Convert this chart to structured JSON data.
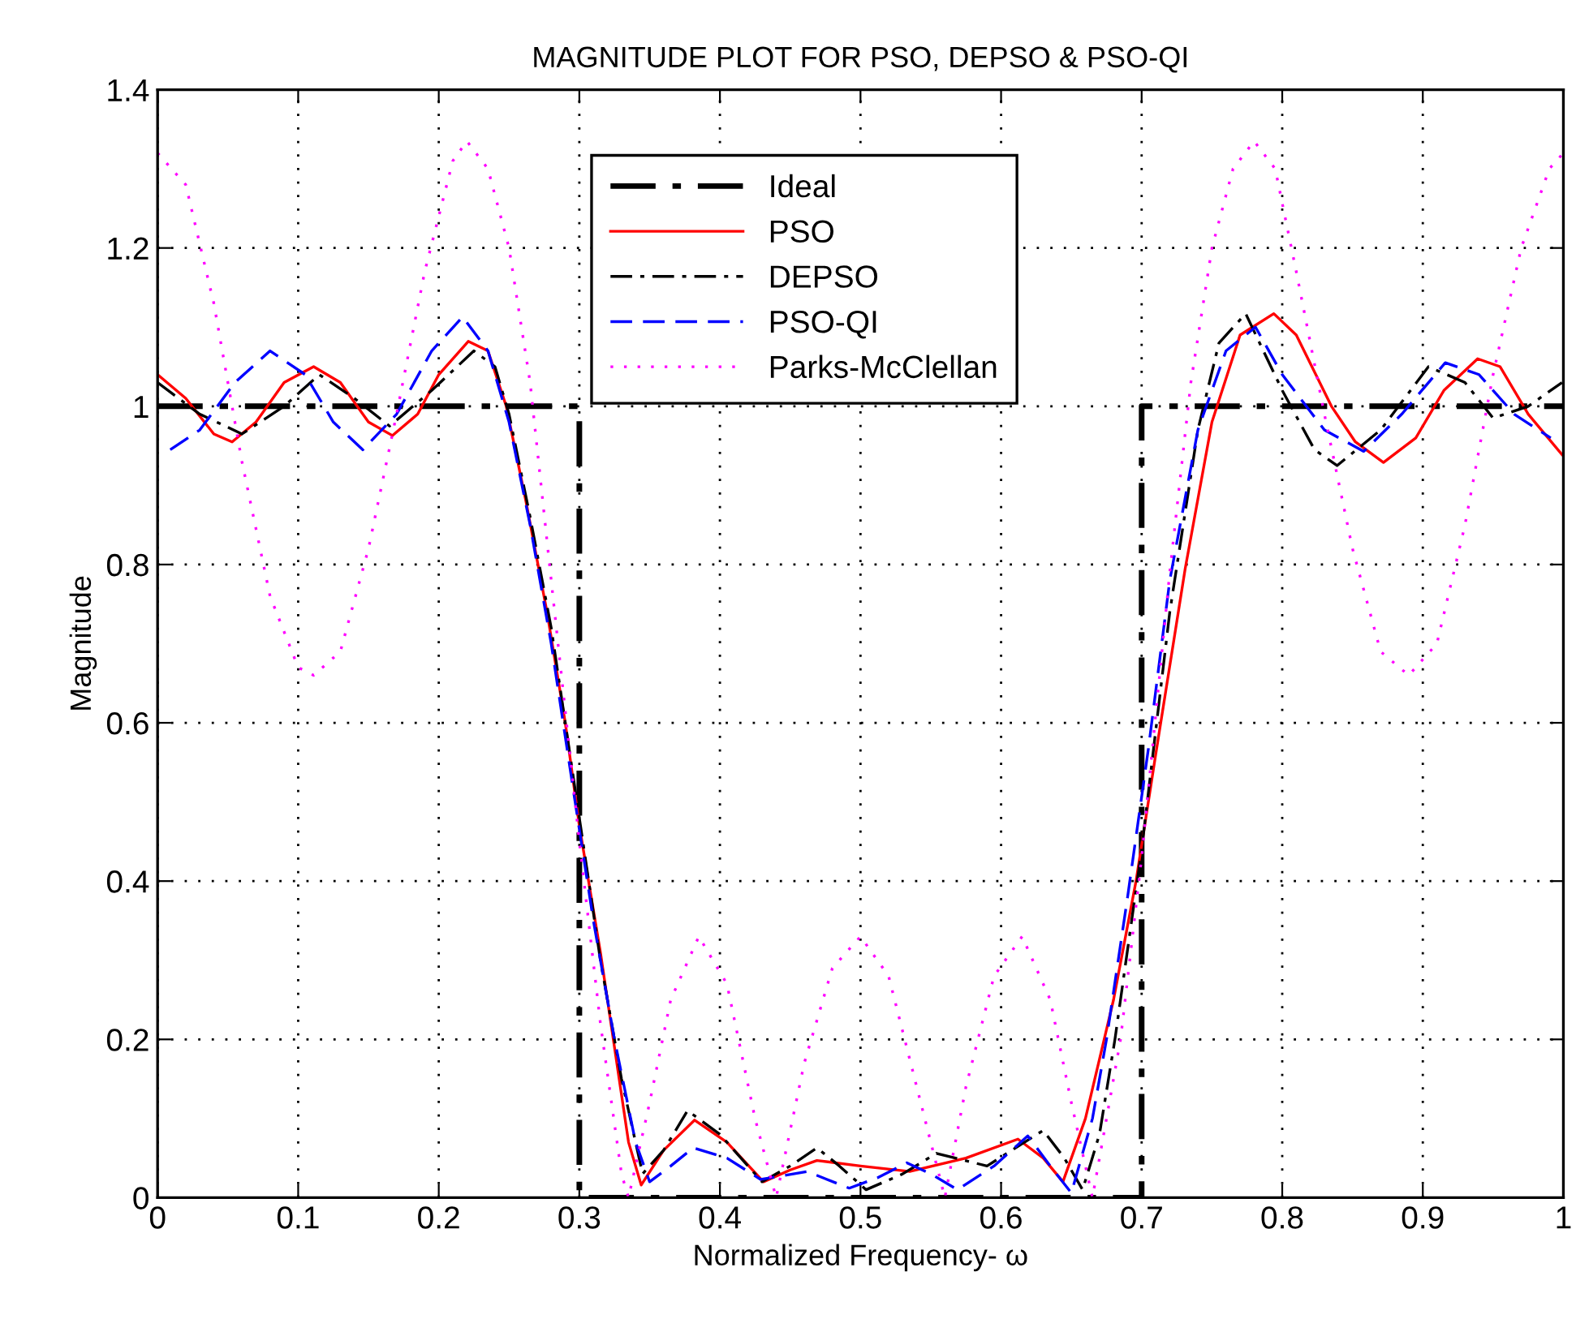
{
  "chart_data": {
    "type": "line",
    "title": "MAGNITUDE PLOT FOR PSO, DEPSO & PSO-QI",
    "xlabel": "Normalized Frequency- ω",
    "ylabel": "Magnitude",
    "xlim": [
      0,
      1
    ],
    "ylim": [
      0,
      1.4
    ],
    "xticks": [
      0,
      0.1,
      0.2,
      0.3,
      0.4,
      0.5,
      0.6,
      0.7,
      0.8,
      0.9,
      1
    ],
    "yticks": [
      0,
      0.2,
      0.4,
      0.6,
      0.8,
      1,
      1.2,
      1.4
    ],
    "grid": true,
    "legend": "top",
    "marker": "none",
    "series": [
      {
        "name": "Ideal",
        "color": "#000000",
        "line_style": "dashdot",
        "x": [
          0,
          0.3,
          0.3,
          0.7,
          0.7,
          1
        ],
        "values": [
          1,
          1,
          0,
          0,
          1,
          1
        ]
      },
      {
        "name": "PSO",
        "color": "#ff0000",
        "line_style": "solid",
        "x": [
          0,
          0.02,
          0.04,
          0.053,
          0.07,
          0.09,
          0.111,
          0.13,
          0.15,
          0.167,
          0.185,
          0.2,
          0.221,
          0.235,
          0.248,
          0.262,
          0.277,
          0.29,
          0.3,
          0.315,
          0.325,
          0.335,
          0.344,
          0.36,
          0.382,
          0.405,
          0.431,
          0.45,
          0.469,
          0.5,
          0.535,
          0.575,
          0.612,
          0.63,
          0.644,
          0.66,
          0.68,
          0.696,
          0.71,
          0.731,
          0.75,
          0.77,
          0.794,
          0.81,
          0.835,
          0.852,
          0.872,
          0.895,
          0.915,
          0.939,
          0.955,
          0.975,
          0.999
        ],
        "values": [
          1.04,
          1.01,
          0.965,
          0.955,
          0.98,
          1.03,
          1.05,
          1.03,
          0.98,
          0.963,
          0.99,
          1.04,
          1.082,
          1.07,
          1.0,
          0.88,
          0.74,
          0.6,
          0.47,
          0.31,
          0.19,
          0.07,
          0.016,
          0.06,
          0.098,
          0.07,
          0.02,
          0.035,
          0.047,
          0.04,
          0.033,
          0.05,
          0.074,
          0.05,
          0.02,
          0.1,
          0.25,
          0.4,
          0.56,
          0.795,
          0.98,
          1.09,
          1.117,
          1.09,
          1.0,
          0.955,
          0.929,
          0.96,
          1.02,
          1.06,
          1.05,
          0.99,
          0.939
        ]
      },
      {
        "name": "DEPSO",
        "color": "#000000",
        "line_style": "dashdot",
        "x": [
          0,
          0.03,
          0.06,
          0.09,
          0.115,
          0.14,
          0.165,
          0.195,
          0.225,
          0.24,
          0.25,
          0.265,
          0.28,
          0.29,
          0.3,
          0.315,
          0.33,
          0.345,
          0.36,
          0.377,
          0.4,
          0.43,
          0.45,
          0.469,
          0.485,
          0.504,
          0.53,
          0.554,
          0.59,
          0.63,
          0.645,
          0.658,
          0.67,
          0.681,
          0.7,
          0.72,
          0.74,
          0.755,
          0.774,
          0.8,
          0.823,
          0.839,
          0.87,
          0.904,
          0.93,
          0.95,
          0.975,
          0.999
        ],
        "values": [
          1.03,
          0.99,
          0.965,
          1.0,
          1.04,
          1.01,
          0.975,
          1.02,
          1.07,
          1.05,
          0.99,
          0.86,
          0.72,
          0.6,
          0.48,
          0.3,
          0.15,
          0.03,
          0.06,
          0.11,
          0.08,
          0.02,
          0.04,
          0.063,
          0.04,
          0.01,
          0.03,
          0.056,
          0.04,
          0.085,
          0.05,
          0.01,
          0.08,
          0.2,
          0.44,
          0.74,
          0.97,
          1.08,
          1.117,
          1.02,
          0.945,
          0.925,
          0.97,
          1.05,
          1.03,
          0.985,
          1.0,
          1.03
        ]
      },
      {
        "name": "PSO-QI",
        "color": "#0000ff",
        "line_style": "dashed",
        "x": [
          0.009,
          0.03,
          0.055,
          0.08,
          0.105,
          0.125,
          0.146,
          0.17,
          0.195,
          0.217,
          0.235,
          0.25,
          0.265,
          0.28,
          0.297,
          0.31,
          0.325,
          0.34,
          0.35,
          0.365,
          0.381,
          0.405,
          0.429,
          0.462,
          0.492,
          0.512,
          0.533,
          0.55,
          0.569,
          0.595,
          0.619,
          0.635,
          0.65,
          0.665,
          0.675,
          0.69,
          0.705,
          0.72,
          0.74,
          0.76,
          0.781,
          0.8,
          0.83,
          0.858,
          0.885,
          0.916,
          0.94,
          0.965,
          0.991
        ],
        "values": [
          0.945,
          0.97,
          1.03,
          1.07,
          1.04,
          0.98,
          0.945,
          0.99,
          1.07,
          1.113,
          1.07,
          0.98,
          0.85,
          0.7,
          0.5,
          0.35,
          0.2,
          0.07,
          0.02,
          0.04,
          0.063,
          0.05,
          0.023,
          0.033,
          0.012,
          0.025,
          0.044,
          0.03,
          0.01,
          0.04,
          0.078,
          0.04,
          0.006,
          0.1,
          0.2,
          0.38,
          0.57,
          0.78,
          0.97,
          1.07,
          1.1,
          1.04,
          0.97,
          0.943,
          0.99,
          1.055,
          1.04,
          0.99,
          0.96
        ]
      },
      {
        "name": "Parks-McClellan",
        "color": "#ff00ff",
        "line_style": "dotted",
        "x": [
          0,
          0.02,
          0.04,
          0.06,
          0.08,
          0.1,
          0.111,
          0.13,
          0.15,
          0.17,
          0.19,
          0.21,
          0.22,
          0.235,
          0.25,
          0.265,
          0.28,
          0.3,
          0.315,
          0.33,
          0.335,
          0.35,
          0.365,
          0.385,
          0.405,
          0.425,
          0.44,
          0.46,
          0.48,
          0.5,
          0.52,
          0.54,
          0.56,
          0.575,
          0.595,
          0.615,
          0.635,
          0.65,
          0.665,
          0.685,
          0.7,
          0.72,
          0.735,
          0.75,
          0.765,
          0.78,
          0.795,
          0.81,
          0.83,
          0.85,
          0.87,
          0.89,
          0.91,
          0.93,
          0.95,
          0.97,
          0.99,
          1
        ],
        "values": [
          1.32,
          1.28,
          1.13,
          0.93,
          0.76,
          0.67,
          0.66,
          0.69,
          0.82,
          0.99,
          1.17,
          1.31,
          1.335,
          1.3,
          1.2,
          1.03,
          0.78,
          0.45,
          0.22,
          0.03,
          0,
          0.12,
          0.25,
          0.33,
          0.27,
          0.1,
          0,
          0.17,
          0.29,
          0.33,
          0.28,
          0.14,
          0,
          0.14,
          0.28,
          0.33,
          0.25,
          0.12,
          0,
          0.2,
          0.43,
          0.79,
          1.03,
          1.2,
          1.3,
          1.335,
          1.3,
          1.17,
          0.99,
          0.82,
          0.69,
          0.66,
          0.7,
          0.85,
          1.04,
          1.2,
          1.3,
          1.32
        ]
      }
    ]
  }
}
